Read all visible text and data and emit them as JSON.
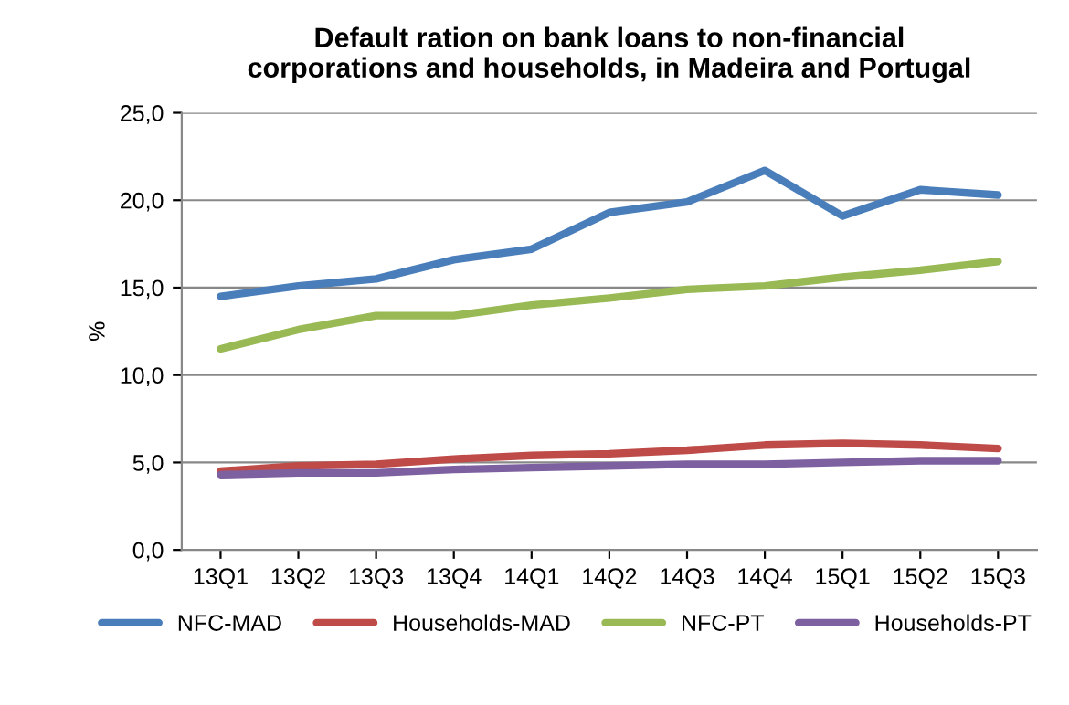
{
  "chart_data": {
    "type": "line",
    "title": "Default ration on bank loans to non-financial\ncorporations and households, in Madeira and Portugal",
    "ylabel": "%",
    "categories": [
      "13Q1",
      "13Q2",
      "13Q3",
      "13Q4",
      "14Q1",
      "14Q2",
      "14Q3",
      "14Q4",
      "15Q1",
      "15Q2",
      "15Q3"
    ],
    "series": [
      {
        "name": "NFC-MAD",
        "color": "#4a7ebb",
        "values": [
          14.5,
          15.1,
          15.5,
          16.6,
          17.2,
          19.3,
          19.9,
          21.7,
          19.1,
          20.6,
          20.3
        ]
      },
      {
        "name": "Households-MAD",
        "color": "#be4b48",
        "values": [
          4.5,
          4.8,
          4.9,
          5.2,
          5.4,
          5.5,
          5.7,
          6.0,
          6.1,
          6.0,
          5.8
        ]
      },
      {
        "name": "NFC-PT",
        "color": "#98b954",
        "values": [
          11.5,
          12.6,
          13.4,
          13.4,
          14.0,
          14.4,
          14.9,
          15.1,
          15.6,
          16.0,
          16.5
        ]
      },
      {
        "name": "Households-PT",
        "color": "#7d60a0",
        "values": [
          4.3,
          4.4,
          4.4,
          4.6,
          4.7,
          4.8,
          4.9,
          4.9,
          5.0,
          5.1,
          5.1
        ]
      }
    ],
    "ylim": [
      0,
      25
    ],
    "yticks": [
      {
        "value": 0,
        "label": "0,0"
      },
      {
        "value": 5,
        "label": "5,0"
      },
      {
        "value": 10,
        "label": "10,0"
      },
      {
        "value": 15,
        "label": "15,0"
      },
      {
        "value": 20,
        "label": "20,0"
      },
      {
        "value": 25,
        "label": "25,0"
      }
    ],
    "grid": "y",
    "legend": "bottom",
    "marker": "none",
    "line_style": "solid"
  }
}
